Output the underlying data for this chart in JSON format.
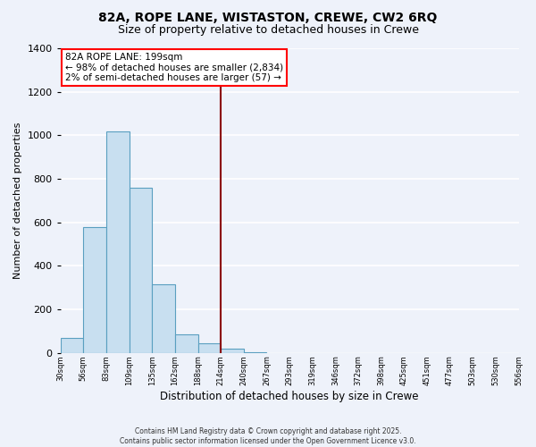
{
  "title": "82A, ROPE LANE, WISTASTON, CREWE, CW2 6RQ",
  "subtitle": "Size of property relative to detached houses in Crewe",
  "xlabel": "Distribution of detached houses by size in Crewe",
  "ylabel": "Number of detached properties",
  "bar_values": [
    70,
    580,
    1020,
    760,
    315,
    85,
    45,
    20,
    5,
    0,
    0,
    0,
    0,
    0,
    0,
    0,
    0,
    0,
    0,
    0
  ],
  "bar_labels": [
    "30sqm",
    "56sqm",
    "83sqm",
    "109sqm",
    "135sqm",
    "162sqm",
    "188sqm",
    "214sqm",
    "240sqm",
    "267sqm",
    "293sqm",
    "319sqm",
    "346sqm",
    "372sqm",
    "398sqm",
    "425sqm",
    "451sqm",
    "477sqm",
    "503sqm",
    "530sqm",
    "556sqm"
  ],
  "bar_color": "#c8dff0",
  "bar_edge_color": "#5a9fc0",
  "vline_x_index": 7,
  "vline_color": "#8b0000",
  "annotation_title": "82A ROPE LANE: 199sqm",
  "annotation_line1": "← 98% of detached houses are smaller (2,834)",
  "annotation_line2": "2% of semi-detached houses are larger (57) →",
  "ylim": [
    0,
    1400
  ],
  "yticks": [
    0,
    200,
    400,
    600,
    800,
    1000,
    1200,
    1400
  ],
  "background_color": "#eef2fa",
  "grid_color": "#ffffff",
  "footer_line1": "Contains HM Land Registry data © Crown copyright and database right 2025.",
  "footer_line2": "Contains public sector information licensed under the Open Government Licence v3.0.",
  "title_fontsize": 10,
  "subtitle_fontsize": 9
}
